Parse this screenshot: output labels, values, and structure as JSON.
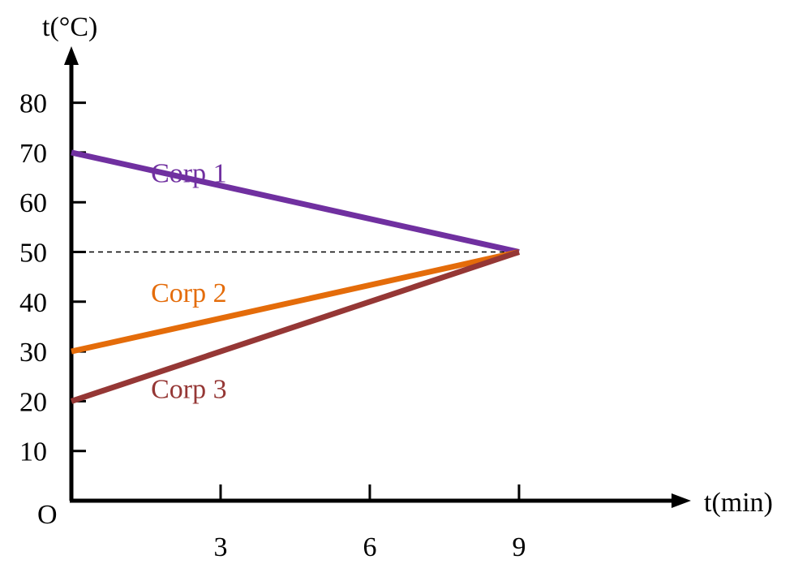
{
  "chart_data": {
    "type": "line",
    "xlabel": "t(min)",
    "ylabel": "t(°C)",
    "origin_label": "O",
    "x_ticks": [
      3,
      6,
      9
    ],
    "y_ticks": [
      10,
      20,
      30,
      40,
      50,
      60,
      70,
      80
    ],
    "xlim": [
      0,
      12
    ],
    "ylim": [
      0,
      90
    ],
    "grid": false,
    "reference_line": {
      "y": 50,
      "x_from": 0,
      "x_to": 9,
      "style": "dashed"
    },
    "series": [
      {
        "name": "Corp 1",
        "x": [
          0,
          9
        ],
        "y": [
          70,
          50
        ],
        "color": "#7030a0",
        "label_at": [
          1.6,
          64
        ]
      },
      {
        "name": "Corp 2",
        "x": [
          0,
          9
        ],
        "y": [
          30,
          50
        ],
        "color": "#e46c0a",
        "label_at": [
          1.6,
          40
        ]
      },
      {
        "name": "Corp 3",
        "x": [
          0,
          9
        ],
        "y": [
          20,
          50
        ],
        "color": "#953735",
        "label_at": [
          1.6,
          20.6
        ]
      }
    ]
  }
}
